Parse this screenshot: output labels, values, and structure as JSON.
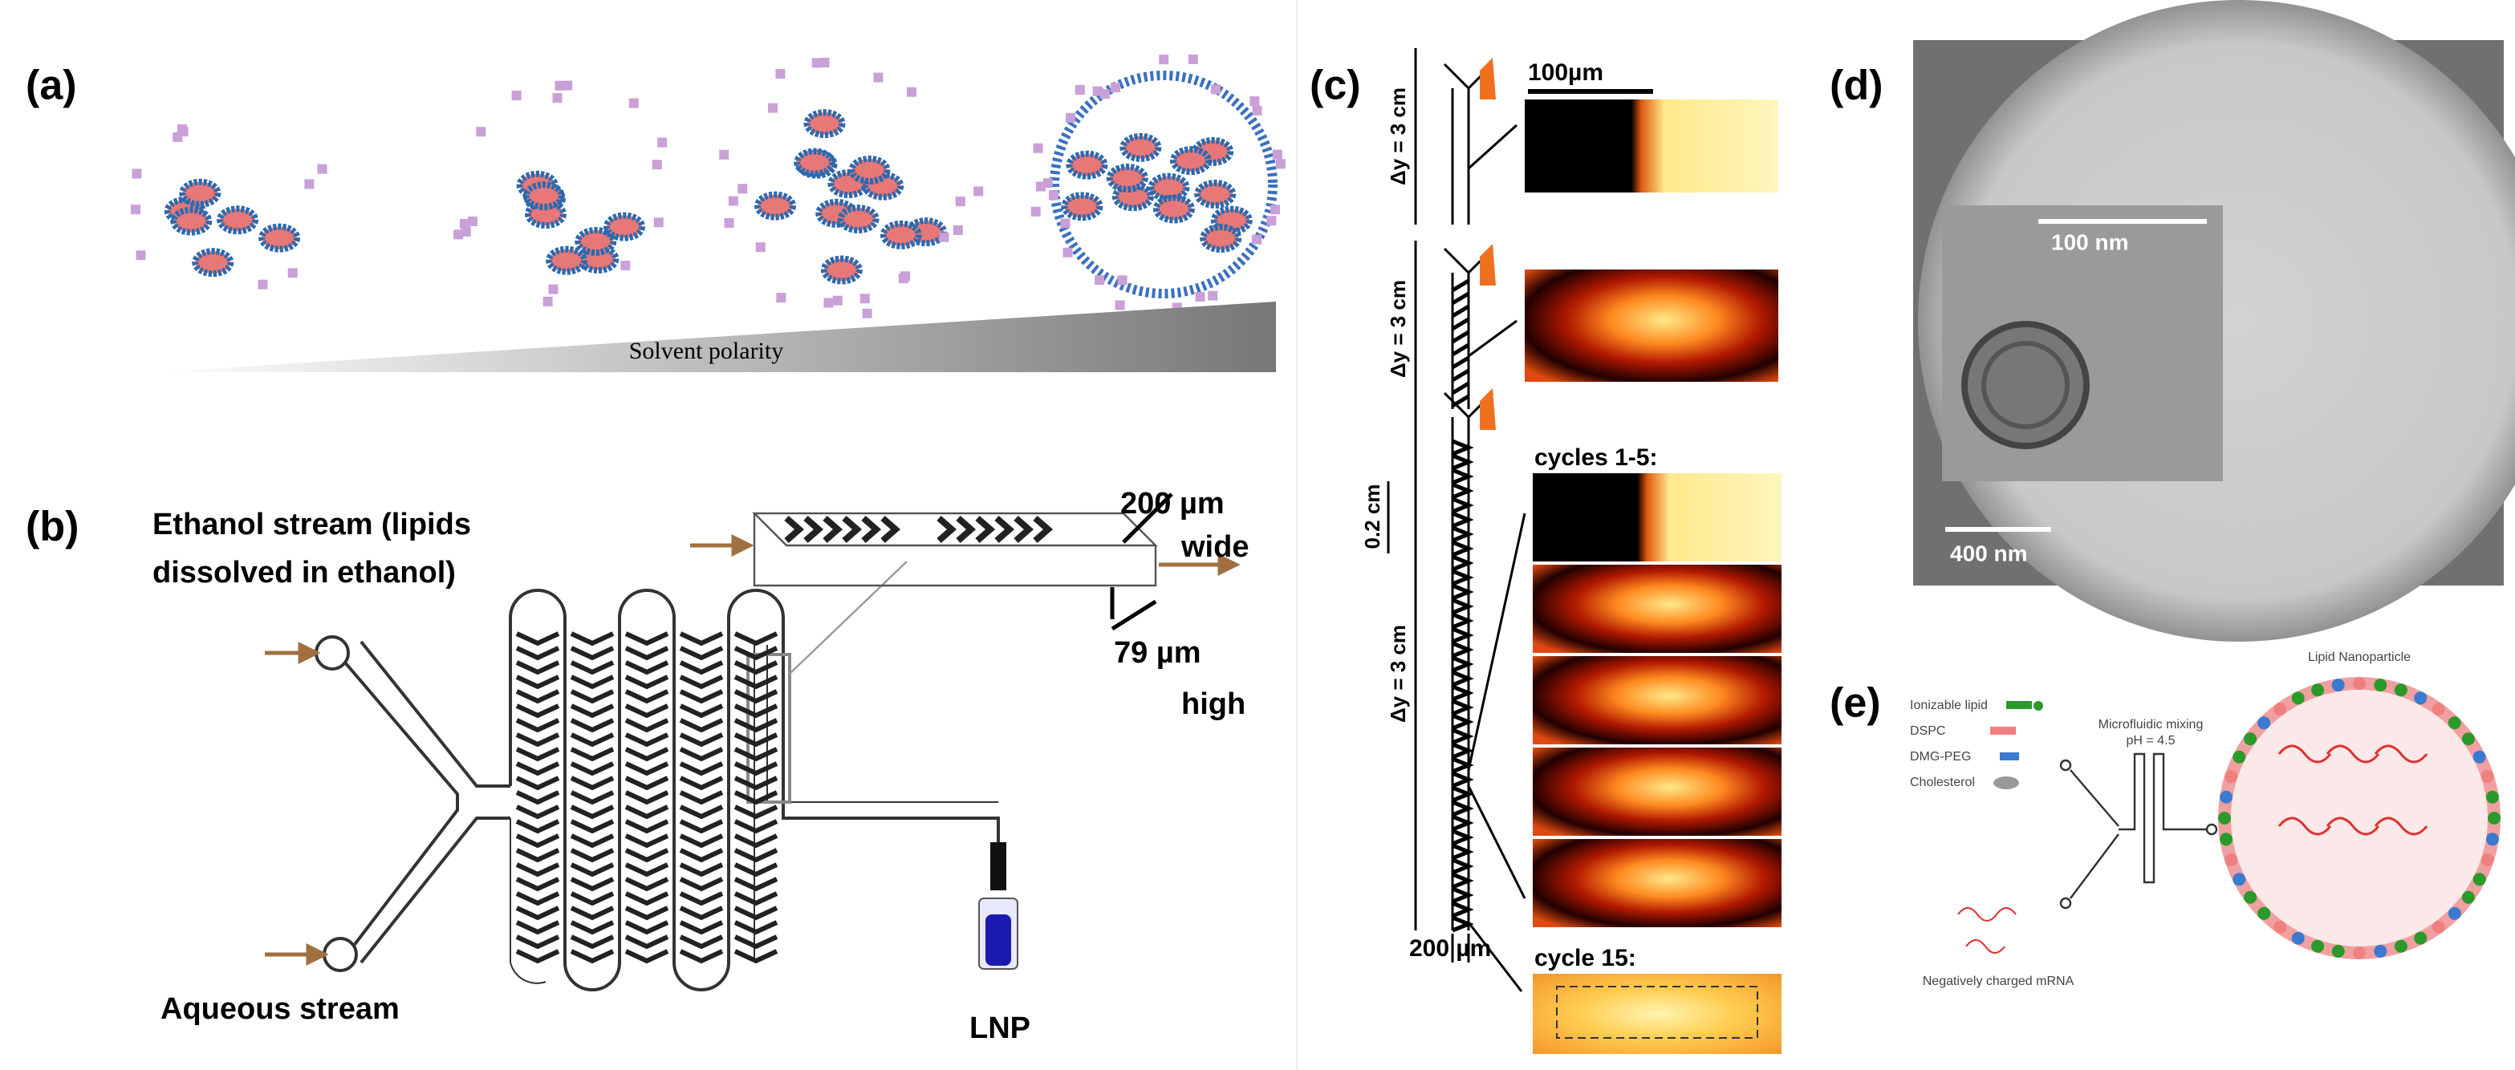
{
  "panels": {
    "a": {
      "label": "(a)",
      "gradient_label": "Solvent polarity"
    },
    "b": {
      "label": "(b)",
      "ethanol_line1": "Ethanol stream (lipids",
      "ethanol_line2": "dissolved in ethanol)",
      "width_value": "200 µm",
      "width_word": "wide",
      "height_value": "79 µm",
      "height_word": "high",
      "aqueous": "Aqueous stream",
      "product": "LNP"
    },
    "c": {
      "label": "(c)",
      "scale_bar": "100µm",
      "dy_labels": [
        "Δy = 3 cm",
        "Δy = 3 cm",
        "Δy = 3 cm"
      ],
      "pitch": "0.2 cm",
      "channel_width": "200 µm",
      "cycles_early": "cycles 1-5:",
      "cycle_late": "cycle 15:"
    },
    "d": {
      "label": "(d)",
      "inset_scale": "100 nm",
      "main_scale": "400 nm"
    },
    "e": {
      "label": "(e)",
      "legend": [
        "Ionizable lipid",
        "DSPC",
        "DMG-PEG",
        "Cholesterol"
      ],
      "mixing_line1": "Microfluidic mixing",
      "mixing_line2": "pH = 4.5",
      "particle": "Lipid Nanoparticle",
      "mrna": "Negatively charged mRNA"
    }
  }
}
